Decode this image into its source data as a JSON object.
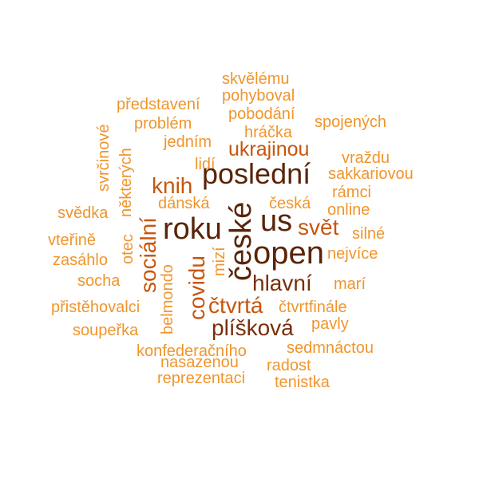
{
  "colors": {
    "light": "#f0952c",
    "mid": "#c8550d",
    "dark": "#7a2e0a",
    "darkest": "#5a2408"
  },
  "words": {
    "skvelemu": "skvělému",
    "pohyboval": "pohyboval",
    "predstaveni": "představení",
    "pobodani": "pobodání",
    "problem": "problém",
    "hracka": "hráčka",
    "spojenych": "spojených",
    "jednim": "jedním",
    "ukrajinou": "ukrajinou",
    "svrcinove": "svrčinové",
    "vrazdu": "vraždu",
    "lidi": "lidí",
    "nekterych": "některých",
    "sakkariovou": "sakkariovou",
    "posledni": "poslední",
    "knih": "knih",
    "ramci": "rámci",
    "danska": "dánská",
    "ceska": "česká",
    "svedka": "svědka",
    "online": "online",
    "us": "us",
    "roku": "roku",
    "ceske": "české",
    "svet": "svět",
    "socialni": "sociální",
    "silne": "silné",
    "vterine": "vteřině",
    "open": "open",
    "otec": "otec",
    "nejvice": "nejvíce",
    "zasahlo": "zasáhlo",
    "mizi": "mizí",
    "covidu": "covidu",
    "socha": "socha",
    "hlavni": "hlavní",
    "mari": "marí",
    "ctvrta": "čtvrtá",
    "pristehovalci": "přistěhovalci",
    "ctvrtfinale": "čtvrtfinále",
    "belmondo": "belmondo",
    "pliskova": "plíšková",
    "pavly": "pavly",
    "souperka": "soupeřka",
    "sedmnactou": "sedmnáctou",
    "konfederacniho": "konfederačního",
    "nasazenou": "nasazenou",
    "radost": "radost",
    "reprezentaci": "reprezentaci",
    "tenistka": "tenistka"
  }
}
